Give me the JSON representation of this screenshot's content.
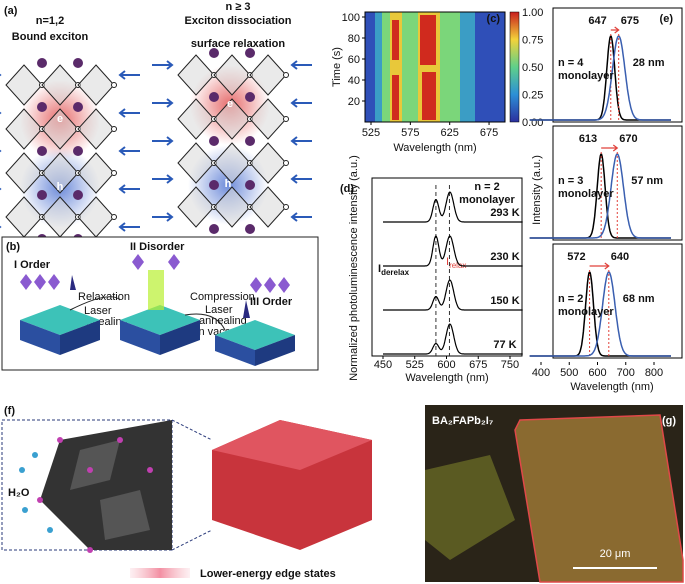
{
  "panels": {
    "a": {
      "label": "(a)",
      "left_title_1": "n=1,2",
      "left_title_2": "Bound exciton",
      "right_title_1": "n ≥ 3",
      "right_title_2": "Exciton dissociation",
      "right_title_3": "surface relaxation",
      "electron_left": "e",
      "hole_left": "h",
      "electron_right": "e",
      "hole_right": "h"
    },
    "b": {
      "label": "(b)",
      "stage_1": "I Order",
      "stage_2": "II Disorder",
      "stage_3": "III Order",
      "step_1": [
        "Relaxation",
        "Laser",
        "annealing"
      ],
      "step_2": [
        "Compression",
        "Laser",
        "annealing",
        "in vaccum"
      ]
    },
    "c": {
      "label": "(c)",
      "x_axis": "Wavelength (nm)",
      "y_axis": "Time (s)",
      "x_ticks": [
        "525",
        "575",
        "625",
        "675"
      ],
      "y_ticks": [
        "20",
        "40",
        "60",
        "80",
        "100"
      ],
      "colorbar_ticks": [
        "0.00",
        "0.25",
        "0.50",
        "0.75",
        "1.00"
      ]
    },
    "d": {
      "label": "(d)",
      "y_axis": "Normalized photoluminescence intensity (a.u.)",
      "x_axis": "Wavelength (nm)",
      "x_ticks": [
        "450",
        "525",
        "600",
        "675",
        "750"
      ],
      "n_label": "n = 2",
      "n_label_2": "monolayer",
      "temperatures": [
        "293 K",
        "230 K",
        "150 K",
        "77 K"
      ],
      "derelax": {
        "main": "I",
        "sub": "derelax"
      },
      "relax": {
        "main": "I",
        "sub": "relax"
      }
    },
    "e": {
      "label": "(e)",
      "y_axis": "Intensity (a.u.)",
      "x_axis": "Wavelength (nm)",
      "x_ticks": [
        "400",
        "500",
        "600",
        "700",
        "800"
      ],
      "subplots": [
        {
          "n": "n = 4",
          "layer": "monolayer",
          "peak_1": "647",
          "peak_2": "675",
          "shift": "28 nm"
        },
        {
          "n": "n = 3",
          "layer": "monolayer",
          "peak_1": "613",
          "peak_2": "670",
          "shift": "57 nm"
        },
        {
          "n": "n = 2",
          "layer": "monolayer",
          "peak_1": "572",
          "peak_2": "640",
          "shift": "68 nm"
        }
      ]
    },
    "f": {
      "label": "(f)",
      "water": "H₂O",
      "legend": "Lower-energy edge states"
    },
    "g": {
      "label": "(g)",
      "material": "BA₂FAPb₂I₇",
      "scale_bar": "20 μm"
    }
  }
}
